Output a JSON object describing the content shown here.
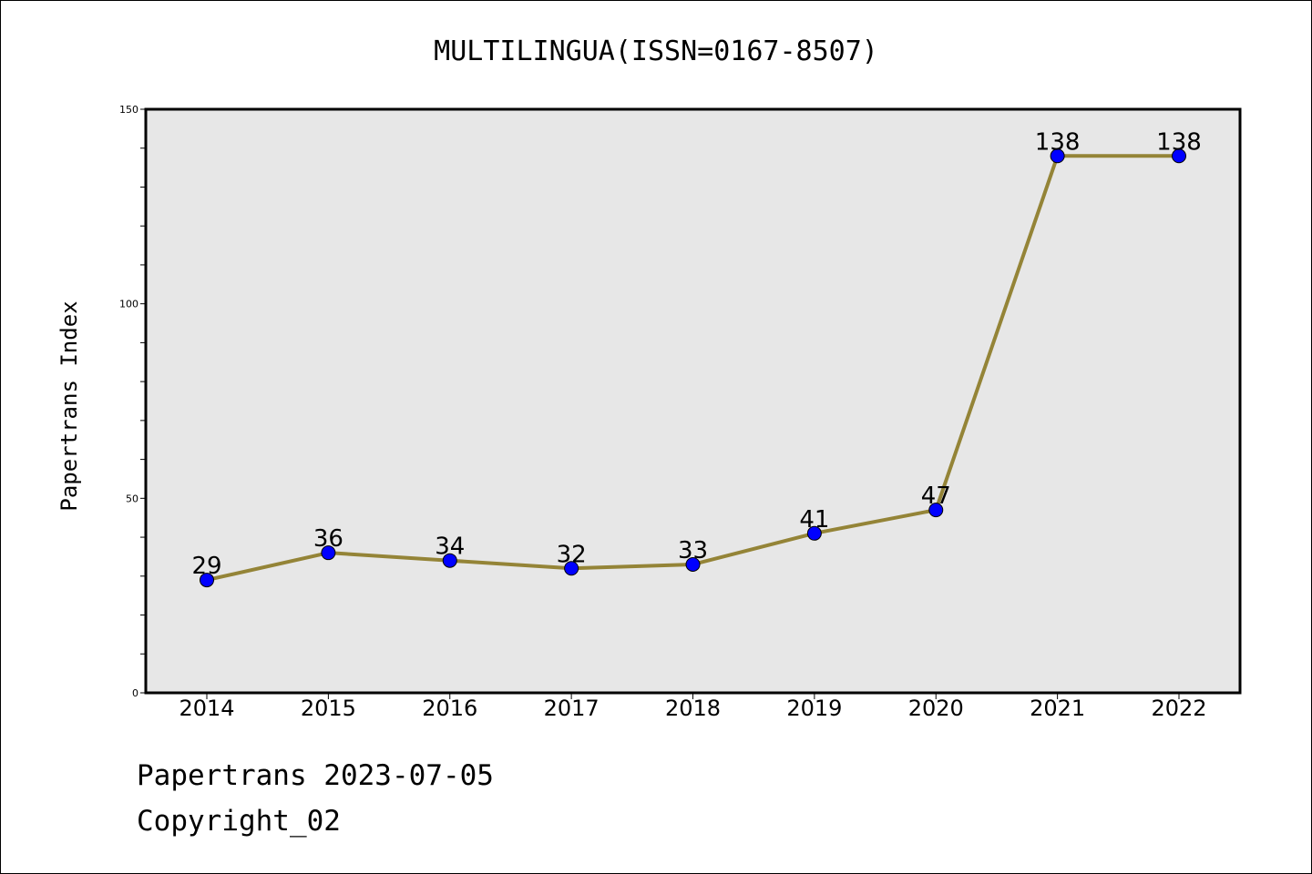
{
  "chart_data": {
    "type": "line",
    "title": "MULTILINGUA(ISSN=0167-8507)",
    "ylabel": "Papertrans Index",
    "xlabel": "",
    "categories": [
      "2014",
      "2015",
      "2016",
      "2017",
      "2018",
      "2019",
      "2020",
      "2021",
      "2022"
    ],
    "values": [
      29,
      36,
      34,
      32,
      33,
      41,
      47,
      138,
      138
    ],
    "ylim": [
      0,
      150
    ],
    "yticks": [
      "0",
      "50",
      "100",
      "150"
    ],
    "grid": false,
    "line_color": "#948437",
    "marker_color": "#0000ff",
    "plot_background": "#e7e7e7"
  },
  "footer": {
    "line1": "Papertrans 2023-07-05",
    "line2": "Copyright_02"
  }
}
